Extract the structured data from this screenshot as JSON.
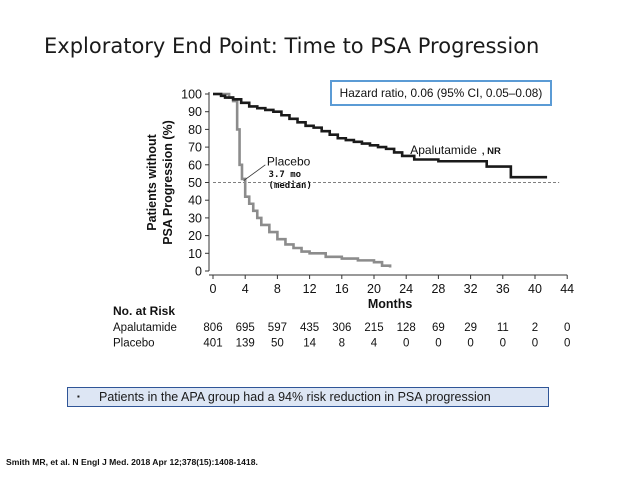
{
  "slide": {
    "title": "Exploratory End Point: Time to PSA  Progression",
    "bullet": "Patients in the APA group had a 94% risk reduction in PSA progression",
    "bullet_symbol": "▪",
    "citation": "Smith MR, et al. N Engl J Med. 2018 Apr 12;378(15):1408-1418."
  },
  "colors": {
    "apalutamide": "#1a1a1a",
    "placebo": "#8c8c8c",
    "hazard_border": "#5b9bd5",
    "bullet_fill": "#dde6f4",
    "bullet_border": "#2f5597"
  },
  "chart_data": {
    "type": "line",
    "step": true,
    "ylabel": [
      "Patients without",
      "PSA Progression (%)"
    ],
    "xlabel": "Months",
    "xlim": [
      0,
      44
    ],
    "ylim": [
      0,
      100
    ],
    "xticks": [
      0,
      4,
      8,
      12,
      16,
      20,
      24,
      28,
      32,
      36,
      40,
      44
    ],
    "yticks": [
      0,
      10,
      20,
      30,
      40,
      50,
      60,
      70,
      80,
      90,
      100
    ],
    "reference_line": {
      "y": 50,
      "style": "dashed"
    },
    "hazard_ratio": "Hazard ratio, 0.06 (95% CI, 0.05–0.08)",
    "series": [
      {
        "name": "Apalutamide",
        "suffix": ", NR",
        "x": [
          0,
          1,
          1.5,
          2.5,
          3.5,
          4.5,
          5.5,
          6.5,
          7.5,
          8.5,
          9.5,
          10.5,
          11.5,
          12.5,
          13.5,
          14.5,
          15.5,
          16.5,
          17.5,
          18.5,
          19.5,
          20.5,
          21.5,
          22.5,
          23.5,
          25,
          28,
          29,
          34,
          37,
          41.5
        ],
        "y": [
          100,
          99,
          98,
          97,
          95,
          93,
          92,
          91,
          90,
          88,
          86,
          84,
          82,
          81,
          79,
          77,
          75,
          74,
          73,
          72,
          71,
          70,
          69,
          67,
          65,
          63,
          62,
          62,
          59,
          53,
          53
        ]
      },
      {
        "name": "Placebo",
        "annotation": [
          "3.7 mo",
          "(median)"
        ],
        "x": [
          0,
          2,
          2.5,
          3,
          3.3,
          3.6,
          4,
          4.5,
          5,
          5.5,
          6,
          7,
          8,
          9,
          10,
          11,
          12,
          14,
          16,
          18,
          20,
          21,
          22
        ],
        "y": [
          100,
          98,
          96,
          80,
          60,
          52,
          42,
          38,
          34,
          30,
          26,
          22,
          18,
          15,
          13,
          11,
          10,
          8,
          7,
          6,
          5,
          3,
          2
        ]
      }
    ],
    "risk_table": {
      "title": "No. at Risk",
      "times": [
        0,
        4,
        8,
        12,
        16,
        20,
        24,
        28,
        32,
        36,
        40,
        44
      ],
      "rows": [
        {
          "name": "Apalutamide",
          "values": [
            806,
            695,
            597,
            435,
            306,
            215,
            128,
            69,
            29,
            11,
            2,
            0
          ]
        },
        {
          "name": "Placebo",
          "values": [
            401,
            139,
            50,
            14,
            8,
            4,
            0,
            0,
            0,
            0,
            0,
            0
          ]
        }
      ]
    }
  }
}
